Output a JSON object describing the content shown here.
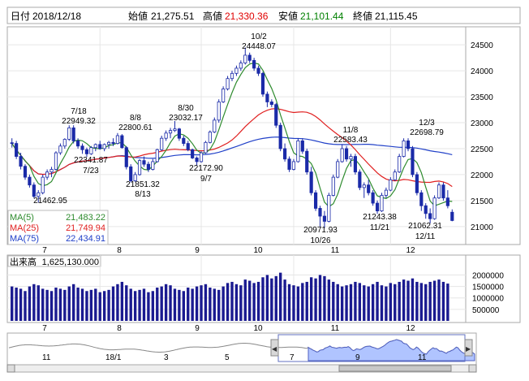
{
  "header": {
    "date_label": "日付",
    "date": "2018/12/18",
    "open_label": "始値",
    "open": "21,275.51",
    "high_label": "高値",
    "high": "21,330.36",
    "low_label": "安値",
    "low": "21,101.44",
    "close_label": "終値",
    "close": "21,115.45"
  },
  "colors": {
    "up": "#ffffff",
    "down": "#1a2aa8",
    "ma5": "#2e8b2e",
    "ma25": "#e02020",
    "ma75": "#2040c8",
    "high_text": "#e00000",
    "low_text": "#008000",
    "volume": "#1a1a90",
    "nav_fill": "#b0c4ff"
  },
  "legend": {
    "ma5_label": "MA(5)",
    "ma5_value": "21,483.22",
    "ma25_label": "MA(25)",
    "ma25_value": "21,749.94",
    "ma75_label": "MA(75)",
    "ma75_value": "22,434.91"
  },
  "annotations": [
    {
      "date": "7/18",
      "value": "22949.32"
    },
    {
      "date": "7/23",
      "value": "22341.87"
    },
    {
      "date": "",
      "value": "21462.95"
    },
    {
      "date": "8/8",
      "value": "22800.61"
    },
    {
      "date": "8/13",
      "value": "21851.32"
    },
    {
      "date": "8/30",
      "value": "23032.17"
    },
    {
      "date": "9/7",
      "value": "22172.90"
    },
    {
      "date": "10/2",
      "value": "24448.07"
    },
    {
      "date": "10/26",
      "value": "20971.93"
    },
    {
      "date": "11/8",
      "value": "22583.43"
    },
    {
      "date": "11/21",
      "value": "21243.38"
    },
    {
      "date": "12/3",
      "value": "22698.79"
    },
    {
      "date": "12/11",
      "value": "21062.31"
    }
  ],
  "volume_panel": {
    "label": "出来高",
    "value": "1,625,130.000",
    "ticks": [
      "2000000",
      "1500000",
      "1000000",
      "500000"
    ]
  },
  "navigator": {
    "labels": [
      "11",
      "18/1",
      "3",
      "5",
      "7",
      "9",
      "11"
    ],
    "left_arrow": "◀",
    "right_arrow": "▶"
  },
  "chart_data": {
    "type": "candlestick",
    "months": [
      "7",
      "8",
      "9",
      "10",
      "11",
      "12"
    ],
    "y_ticks": [
      24500,
      24000,
      23500,
      23000,
      22500,
      22000,
      21500,
      21000
    ],
    "ylim": [
      20700,
      24800
    ],
    "volume_ylim": [
      0,
      2300000
    ],
    "candles": [
      [
        22614,
        22700,
        22520,
        22600
      ],
      [
        22600,
        22650,
        22300,
        22350
      ],
      [
        22350,
        22420,
        22100,
        22160
      ],
      [
        22160,
        22200,
        21900,
        21950
      ],
      [
        21950,
        22000,
        21750,
        21800
      ],
      [
        21800,
        21850,
        21550,
        21580
      ],
      [
        21580,
        21700,
        21462.95,
        21650
      ],
      [
        21650,
        22000,
        21620,
        21950
      ],
      [
        21950,
        22100,
        21900,
        22050
      ],
      [
        22050,
        22150,
        21950,
        22100
      ],
      [
        22100,
        22450,
        22080,
        22420
      ],
      [
        22420,
        22600,
        22380,
        22550
      ],
      [
        22550,
        22700,
        22500,
        22680
      ],
      [
        22680,
        22949.32,
        22650,
        22900
      ],
      [
        22900,
        22950,
        22600,
        22650
      ],
      [
        22650,
        22700,
        22500,
        22550
      ],
      [
        22550,
        22600,
        22400,
        22480
      ],
      [
        22480,
        22520,
        22341.87,
        22400
      ],
      [
        22400,
        22550,
        22380,
        22520
      ],
      [
        22520,
        22600,
        22450,
        22580
      ],
      [
        22580,
        22650,
        22480,
        22500
      ],
      [
        22500,
        22600,
        22450,
        22580
      ],
      [
        22580,
        22650,
        22500,
        22620
      ],
      [
        22620,
        22700,
        22550,
        22600
      ],
      [
        22600,
        22800.61,
        22580,
        22750
      ],
      [
        22750,
        22780,
        22500,
        22520
      ],
      [
        22520,
        22550,
        22100,
        22150
      ],
      [
        22150,
        22200,
        21851.32,
        21880
      ],
      [
        21880,
        22050,
        21860,
        22000
      ],
      [
        22000,
        22300,
        21980,
        22270
      ],
      [
        22270,
        22350,
        22150,
        22200
      ],
      [
        22200,
        22250,
        22050,
        22100
      ],
      [
        22100,
        22300,
        22080,
        22250
      ],
      [
        22250,
        22500,
        22230,
        22480
      ],
      [
        22480,
        22750,
        22460,
        22700
      ],
      [
        22700,
        22850,
        22650,
        22800
      ],
      [
        22800,
        22900,
        22700,
        22850
      ],
      [
        22850,
        23032.17,
        22820,
        22880
      ],
      [
        22880,
        22900,
        22650,
        22700
      ],
      [
        22700,
        22750,
        22550,
        22600
      ],
      [
        22600,
        22650,
        22450,
        22480
      ],
      [
        22480,
        22500,
        22300,
        22320
      ],
      [
        22320,
        22350,
        22172.9,
        22250
      ],
      [
        22250,
        22450,
        22230,
        22420
      ],
      [
        22420,
        22650,
        22400,
        22620
      ],
      [
        22620,
        22850,
        22600,
        22820
      ],
      [
        22820,
        23100,
        22800,
        23050
      ],
      [
        23050,
        23450,
        23000,
        23400
      ],
      [
        23400,
        23700,
        23380,
        23650
      ],
      [
        23650,
        23900,
        23620,
        23850
      ],
      [
        23850,
        24000,
        23800,
        23950
      ],
      [
        23950,
        24100,
        23900,
        24050
      ],
      [
        24050,
        24200,
        24000,
        24150
      ],
      [
        24150,
        24448.07,
        24120,
        24300
      ],
      [
        24300,
        24350,
        24150,
        24200
      ],
      [
        24200,
        24250,
        24000,
        24050
      ],
      [
        24050,
        24100,
        23900,
        23950
      ],
      [
        23950,
        23980,
        23500,
        23550
      ],
      [
        23550,
        23600,
        23300,
        23400
      ],
      [
        23400,
        23450,
        23300,
        23350
      ],
      [
        23350,
        23380,
        22900,
        22950
      ],
      [
        22950,
        23000,
        22450,
        22500
      ],
      [
        22500,
        22600,
        22250,
        22300
      ],
      [
        22300,
        22350,
        22050,
        22100
      ],
      [
        22100,
        22300,
        22080,
        22250
      ],
      [
        22250,
        22700,
        22230,
        22650
      ],
      [
        22650,
        22700,
        22400,
        22450
      ],
      [
        22450,
        22500,
        22000,
        22050
      ],
      [
        22050,
        22150,
        21600,
        21650
      ],
      [
        21650,
        21700,
        21300,
        21350
      ],
      [
        21350,
        21400,
        21000,
        21200
      ],
      [
        21200,
        21300,
        20971.93,
        21100
      ],
      [
        21100,
        21650,
        21080,
        21600
      ],
      [
        21600,
        22000,
        21580,
        21950
      ],
      [
        21950,
        22300,
        21930,
        22250
      ],
      [
        22250,
        22583.43,
        22230,
        22500
      ],
      [
        22500,
        22550,
        22250,
        22300
      ],
      [
        22300,
        22400,
        22150,
        22350
      ],
      [
        22350,
        22400,
        22000,
        22050
      ],
      [
        22050,
        22100,
        21700,
        21750
      ],
      [
        21750,
        21850,
        21550,
        21800
      ],
      [
        21800,
        21900,
        21600,
        21650
      ],
      [
        21650,
        21700,
        21400,
        21450
      ],
      [
        21450,
        21500,
        21243.38,
        21300
      ],
      [
        21300,
        21650,
        21280,
        21600
      ],
      [
        21600,
        21750,
        21550,
        21700
      ],
      [
        21700,
        21950,
        21680,
        21900
      ],
      [
        21900,
        22100,
        21880,
        22050
      ],
      [
        22050,
        22400,
        22030,
        22350
      ],
      [
        22350,
        22698.79,
        22330,
        22650
      ],
      [
        22650,
        22700,
        22450,
        22500
      ],
      [
        22500,
        22550,
        21950,
        22000
      ],
      [
        22000,
        22050,
        21600,
        21650
      ],
      [
        21650,
        21700,
        21300,
        21400
      ],
      [
        21400,
        21450,
        21150,
        21250
      ],
      [
        21250,
        21350,
        21062.31,
        21150
      ],
      [
        21150,
        21600,
        21130,
        21550
      ],
      [
        21550,
        21850,
        21530,
        21800
      ],
      [
        21800,
        21850,
        21500,
        21550
      ],
      [
        21550,
        21700,
        21350,
        21400
      ],
      [
        21275.51,
        21330.36,
        21101.44,
        21115.45
      ]
    ],
    "volumes": [
      1500000,
      1450000,
      1400000,
      1300000,
      1500000,
      1600000,
      1550000,
      1400000,
      1350000,
      1300000,
      1450000,
      1400000,
      1350000,
      1500000,
      1600000,
      1450000,
      1400000,
      1300000,
      1350000,
      1400000,
      1250000,
      1300000,
      1350000,
      1500000,
      1600000,
      1700000,
      1550000,
      1400000,
      1300000,
      1350000,
      1400000,
      1250000,
      1300000,
      1450000,
      1500000,
      1600000,
      1550000,
      1400000,
      1350000,
      1300000,
      1450000,
      1400000,
      1500000,
      1550000,
      1600000,
      1450000,
      1400000,
      1350000,
      1500000,
      1650000,
      1700000,
      1600000,
      1550000,
      1800000,
      1750000,
      1650000,
      1700000,
      1900000,
      2000000,
      1850000,
      1950000,
      2100000,
      1800000,
      1600000,
      1550000,
      1500000,
      1650000,
      1700000,
      1900000,
      1850000,
      2000000,
      1950000,
      1800000,
      1700000,
      1600000,
      1500000,
      1550000,
      1600000,
      1700000,
      1650000,
      1550000,
      1500000,
      1600000,
      1700000,
      1550000,
      1500000,
      1650000,
      1600000,
      1700000,
      1800000,
      1750000,
      1850000,
      1700000,
      1650000,
      1600000,
      1700000,
      1750000,
      1800000,
      1700000,
      1625130
    ]
  }
}
